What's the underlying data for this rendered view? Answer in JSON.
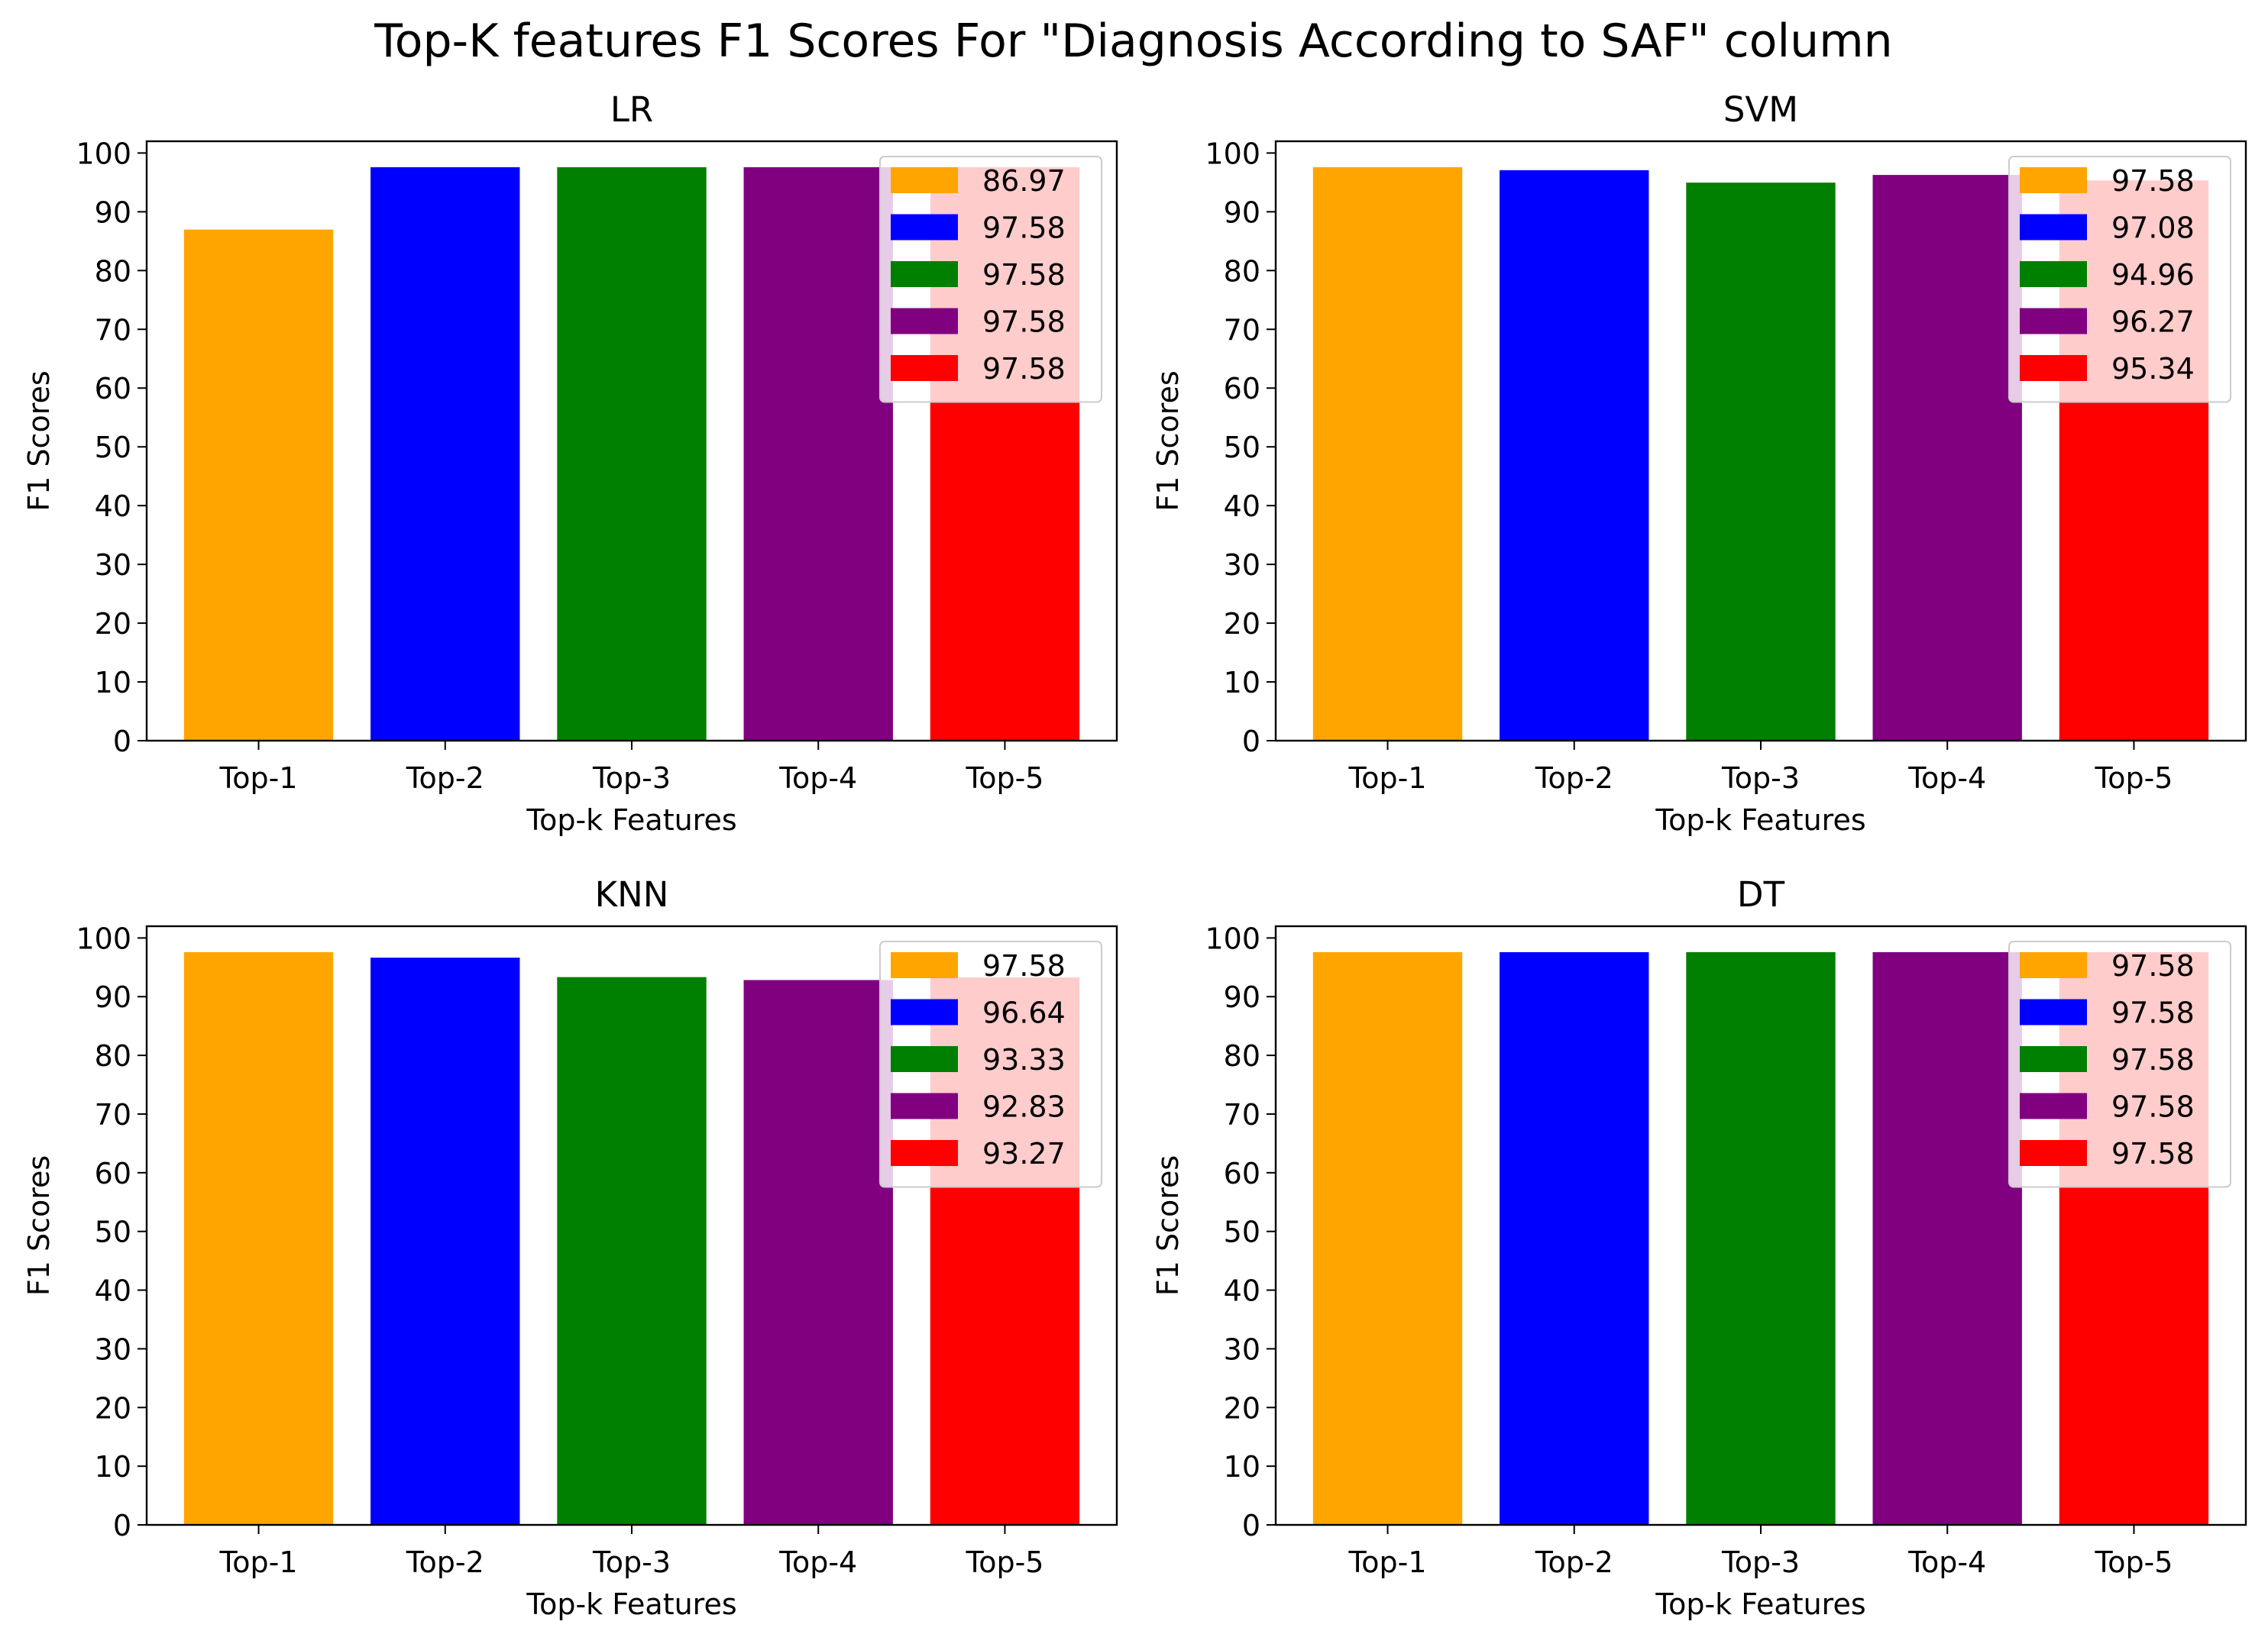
{
  "title": "Top-K features F1 Scores For \"Diagnosis According to SAF\" column",
  "colors": [
    "#ffa500",
    "#0000ff",
    "#008000",
    "#800080",
    "#ff0000"
  ],
  "chart_data": [
    {
      "type": "bar",
      "title": "LR",
      "xlabel": "Top-k Features",
      "ylabel": "F1 Scores",
      "categories": [
        "Top-1",
        "Top-2",
        "Top-3",
        "Top-4",
        "Top-5"
      ],
      "values": [
        86.97,
        97.58,
        97.58,
        97.58,
        97.58
      ],
      "legend": [
        "86.97",
        "97.58",
        "97.58",
        "97.58",
        "97.58"
      ],
      "legend_position": "top-right",
      "ylim": [
        0,
        102
      ],
      "yticks": [
        0,
        10,
        20,
        30,
        40,
        50,
        60,
        70,
        80,
        90,
        100
      ],
      "grid": false
    },
    {
      "type": "bar",
      "title": "SVM",
      "xlabel": "Top-k Features",
      "ylabel": "F1 Scores",
      "categories": [
        "Top-1",
        "Top-2",
        "Top-3",
        "Top-4",
        "Top-5"
      ],
      "values": [
        97.58,
        97.08,
        94.96,
        96.27,
        95.34
      ],
      "legend": [
        "97.58",
        "97.08",
        "94.96",
        "96.27",
        "95.34"
      ],
      "legend_position": "top-right",
      "ylim": [
        0,
        102
      ],
      "yticks": [
        0,
        10,
        20,
        30,
        40,
        50,
        60,
        70,
        80,
        90,
        100
      ],
      "grid": false
    },
    {
      "type": "bar",
      "title": "KNN",
      "xlabel": "Top-k Features",
      "ylabel": "F1 Scores",
      "categories": [
        "Top-1",
        "Top-2",
        "Top-3",
        "Top-4",
        "Top-5"
      ],
      "values": [
        97.58,
        96.64,
        93.33,
        92.83,
        93.27
      ],
      "legend": [
        "97.58",
        "96.64",
        "93.33",
        "92.83",
        "93.27"
      ],
      "legend_position": "top-right",
      "ylim": [
        0,
        102
      ],
      "yticks": [
        0,
        10,
        20,
        30,
        40,
        50,
        60,
        70,
        80,
        90,
        100
      ],
      "grid": false
    },
    {
      "type": "bar",
      "title": "DT",
      "xlabel": "Top-k Features",
      "ylabel": "F1 Scores",
      "categories": [
        "Top-1",
        "Top-2",
        "Top-3",
        "Top-4",
        "Top-5"
      ],
      "values": [
        97.58,
        97.58,
        97.58,
        97.58,
        97.58
      ],
      "legend": [
        "97.58",
        "97.58",
        "97.58",
        "97.58",
        "97.58"
      ],
      "legend_position": "top-right",
      "ylim": [
        0,
        102
      ],
      "yticks": [
        0,
        10,
        20,
        30,
        40,
        50,
        60,
        70,
        80,
        90,
        100
      ],
      "grid": false
    }
  ]
}
